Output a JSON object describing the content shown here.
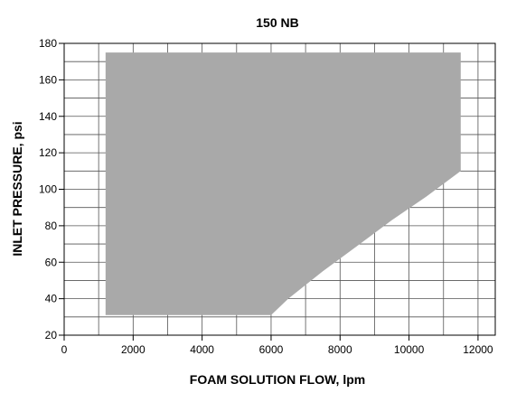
{
  "chart_data": {
    "type": "area",
    "title": "150 NB",
    "xlabel": "FOAM SOLUTION FLOW, lpm",
    "ylabel": "INLET PRESSURE, psi",
    "xlim": [
      0,
      12500
    ],
    "ylim": [
      20,
      180
    ],
    "x_ticks": [
      0,
      2000,
      4000,
      6000,
      8000,
      10000,
      12000
    ],
    "x_tick_labels": [
      "0",
      "2000",
      "4000",
      "6000",
      "8000",
      "10000",
      "12000"
    ],
    "y_ticks": [
      20,
      40,
      60,
      80,
      100,
      120,
      140,
      160,
      180
    ],
    "y_tick_labels": [
      "20",
      "40",
      "60",
      "80",
      "100",
      "120",
      "140",
      "160",
      "180"
    ],
    "x_minor_step": 1000,
    "y_minor_step": 10,
    "grid": true,
    "fill_color": "#a9a9a9",
    "region": [
      {
        "x": 1200,
        "y": 31
      },
      {
        "x": 1200,
        "y": 175
      },
      {
        "x": 11500,
        "y": 175
      },
      {
        "x": 11500,
        "y": 110
      },
      {
        "x": 10500,
        "y": 96
      },
      {
        "x": 9500,
        "y": 83
      },
      {
        "x": 8500,
        "y": 69
      },
      {
        "x": 7500,
        "y": 55
      },
      {
        "x": 6500,
        "y": 40
      },
      {
        "x": 6000,
        "y": 31
      }
    ]
  }
}
